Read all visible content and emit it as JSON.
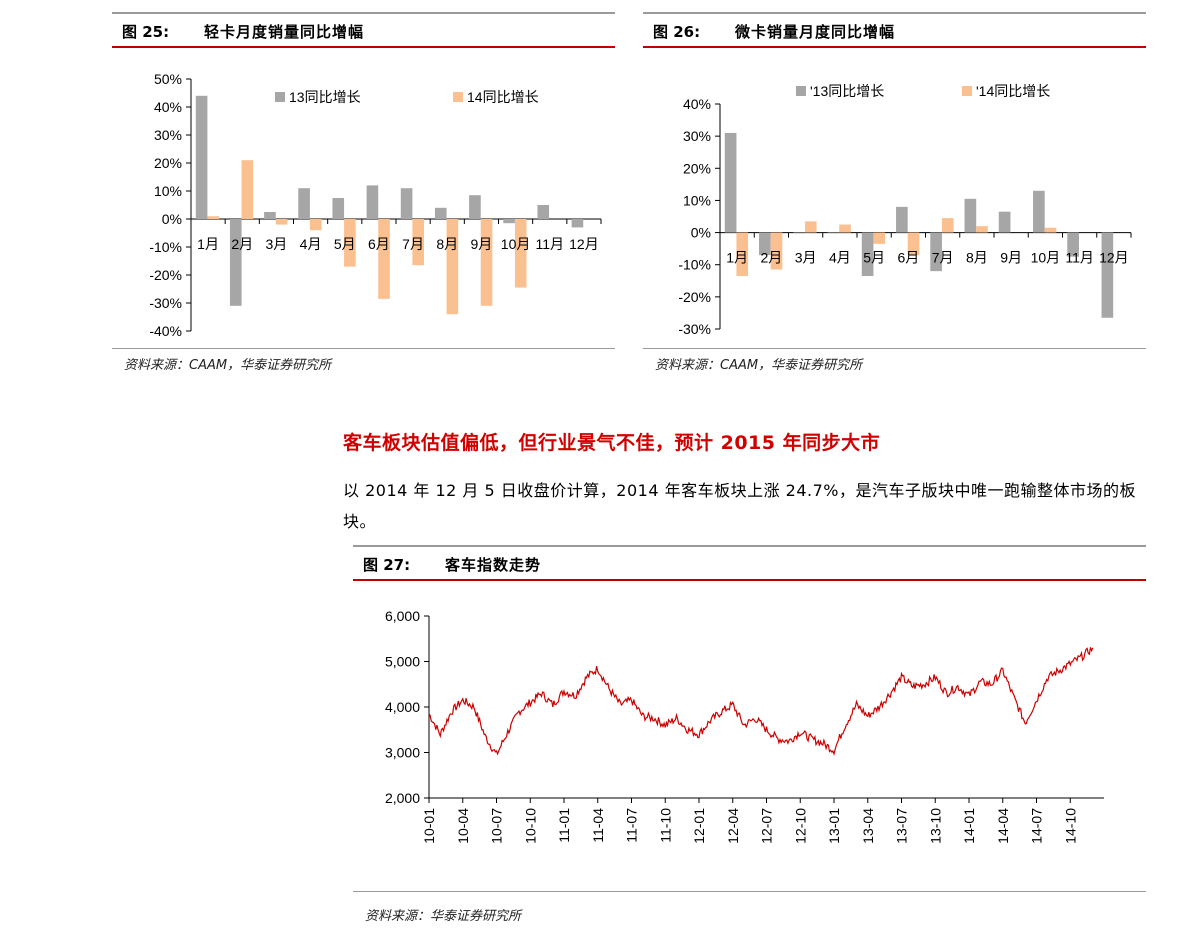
{
  "fig25": {
    "number": "图 25:",
    "title": "轻卡月度销量同比增幅",
    "source": "资料来源：CAAM，华泰证券研究所",
    "chart_data": {
      "type": "bar",
      "categories": [
        "1月",
        "2月",
        "3月",
        "4月",
        "5月",
        "6月",
        "7月",
        "8月",
        "9月",
        "10月",
        "11月",
        "12月"
      ],
      "series": [
        {
          "name": "13同比增长",
          "color": "#a6a6a6",
          "values": [
            44,
            -31,
            2.5,
            11,
            7.5,
            12,
            11,
            4,
            8.5,
            -1.5,
            5,
            -3
          ]
        },
        {
          "name": "14同比增长",
          "color": "#fac090",
          "values": [
            1,
            21,
            -2,
            -4,
            -17,
            -28.5,
            -16.5,
            -34,
            -31,
            -24.5,
            null,
            null
          ]
        }
      ],
      "y_ticks": [
        "50%",
        "40%",
        "30%",
        "20%",
        "10%",
        "0%",
        "-10%",
        "-20%",
        "-30%",
        "-40%"
      ],
      "ylim": [
        -40,
        50
      ],
      "legend": "top"
    }
  },
  "fig26": {
    "number": "图 26:",
    "title": "微卡销量月度同比增幅",
    "source": "资料来源：CAAM，华泰证券研究所",
    "chart_data": {
      "type": "bar",
      "categories": [
        "1月",
        "2月",
        "3月",
        "4月",
        "5月",
        "6月",
        "7月",
        "8月",
        "9月",
        "10月",
        "11月",
        "12月"
      ],
      "series": [
        {
          "name": "'13同比增长",
          "color": "#a6a6a6",
          "values": [
            31,
            -7,
            0,
            0,
            -13.5,
            8,
            -12,
            10.5,
            6.5,
            13,
            -7.5,
            -26.5
          ]
        },
        {
          "name": "'14同比增长",
          "color": "#fac090",
          "values": [
            -13.5,
            -11.5,
            3.5,
            2.5,
            -3.5,
            -7,
            4.5,
            2,
            null,
            1.5,
            null,
            null
          ]
        }
      ],
      "y_ticks": [
        "40%",
        "30%",
        "20%",
        "10%",
        "0%",
        "-10%",
        "-20%",
        "-30%"
      ],
      "ylim": [
        -30,
        40
      ],
      "legend": "top"
    }
  },
  "headline": "客车板块估值偏低，但行业景气不佳，预计 2015 年同步大市",
  "paragraph": "以 2014 年 12 月 5 日收盘价计算，2014 年客车板块上涨 24.7%，是汽车子版块中唯一跑输整体市场的板块。",
  "fig27": {
    "number": "图 27:",
    "title": "客车指数走势",
    "source": "资料来源：华泰证券研究所",
    "chart_data": {
      "type": "line",
      "line_color": "#cc0000",
      "y_ticks": [
        "6,000",
        "5,000",
        "4,000",
        "3,000",
        "2,000"
      ],
      "ylim": [
        2000,
        6000
      ],
      "x_ticks": [
        "10-01",
        "10-04",
        "10-07",
        "10-10",
        "11-01",
        "11-04",
        "11-07",
        "11-10",
        "12-01",
        "12-04",
        "12-07",
        "12-10",
        "13-01",
        "13-04",
        "13-07",
        "13-10",
        "14-01",
        "14-04",
        "14-07",
        "14-10"
      ],
      "points": [
        [
          "10-01",
          3850
        ],
        [
          "10-02",
          3400
        ],
        [
          "10-03",
          3900
        ],
        [
          "10-04",
          4150
        ],
        [
          "10-05",
          4000
        ],
        [
          "10-06",
          3350
        ],
        [
          "10-07",
          2950
        ],
        [
          "10-08",
          3450
        ],
        [
          "10-09",
          3900
        ],
        [
          "10-10",
          4100
        ],
        [
          "10-11",
          4300
        ],
        [
          "10-12",
          4050
        ],
        [
          "11-01",
          4350
        ],
        [
          "11-02",
          4250
        ],
        [
          "11-03",
          4650
        ],
        [
          "11-04",
          4850
        ],
        [
          "11-05",
          4400
        ],
        [
          "11-06",
          4050
        ],
        [
          "11-07",
          4150
        ],
        [
          "11-08",
          3800
        ],
        [
          "11-09",
          3750
        ],
        [
          "11-10",
          3600
        ],
        [
          "11-11",
          3750
        ],
        [
          "11-12",
          3500
        ],
        [
          "12-01",
          3400
        ],
        [
          "12-02",
          3700
        ],
        [
          "12-03",
          3900
        ],
        [
          "12-04",
          4050
        ],
        [
          "12-05",
          3600
        ],
        [
          "12-06",
          3750
        ],
        [
          "12-07",
          3500
        ],
        [
          "12-08",
          3300
        ],
        [
          "12-09",
          3250
        ],
        [
          "12-10",
          3450
        ],
        [
          "12-11",
          3300
        ],
        [
          "12-12",
          3200
        ],
        [
          "13-01",
          3050
        ],
        [
          "13-02",
          3600
        ],
        [
          "13-03",
          4050
        ],
        [
          "13-04",
          3800
        ],
        [
          "13-05",
          4000
        ],
        [
          "13-06",
          4300
        ],
        [
          "13-07",
          4650
        ],
        [
          "13-08",
          4450
        ],
        [
          "13-09",
          4500
        ],
        [
          "13-10",
          4650
        ],
        [
          "13-11",
          4300
        ],
        [
          "13-12",
          4450
        ],
        [
          "14-01",
          4250
        ],
        [
          "14-02",
          4550
        ],
        [
          "14-03",
          4500
        ],
        [
          "14-04",
          4800
        ],
        [
          "14-05",
          4200
        ],
        [
          "14-06",
          3650
        ],
        [
          "14-07",
          4150
        ],
        [
          "14-08",
          4650
        ],
        [
          "14-09",
          4800
        ],
        [
          "14-10",
          4950
        ],
        [
          "14-11",
          5100
        ],
        [
          "14-12",
          5300
        ]
      ]
    }
  }
}
